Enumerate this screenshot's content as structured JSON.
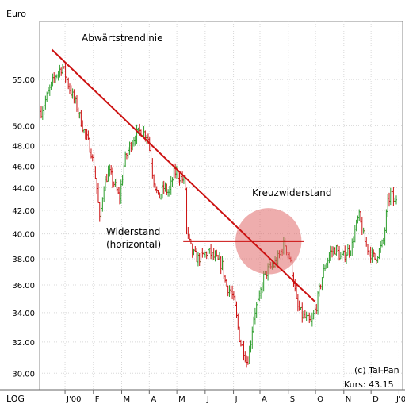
{
  "chart_data": {
    "type": "candlestick",
    "ylabel": "Euro",
    "scale": "log",
    "scale_label": "LOG",
    "ylim": [
      29,
      62
    ],
    "y_ticks": [
      "55.00",
      "50.00",
      "48.00",
      "46.00",
      "44.00",
      "42.00",
      "40.00",
      "38.00",
      "36.00",
      "34.00",
      "32.00",
      "30.00"
    ],
    "y_tick_values": [
      55,
      50,
      48,
      46,
      44,
      42,
      40,
      38,
      36,
      34,
      32,
      30
    ],
    "x_labels": [
      "J'00",
      "F",
      "M",
      "A",
      "M",
      "J",
      "J",
      "A",
      "S",
      "O",
      "N",
      "D",
      "J'01"
    ],
    "x_label_positions": [
      0.07,
      0.148,
      0.226,
      0.302,
      0.378,
      0.456,
      0.534,
      0.607,
      0.685,
      0.76,
      0.838,
      0.913,
      0.99
    ],
    "grid": true,
    "bull_color": "#2e9e2e",
    "bear_color": "#cc1111",
    "line_color": "#cc1111",
    "highlight_color": "#e06a6a",
    "path_points": [
      [
        0.0,
        51.5
      ],
      [
        0.02,
        53.5
      ],
      [
        0.04,
        55.5
      ],
      [
        0.06,
        56.5
      ],
      [
        0.08,
        54.0
      ],
      [
        0.1,
        52.0
      ],
      [
        0.12,
        49.5
      ],
      [
        0.14,
        47.5
      ],
      [
        0.155,
        44.5
      ],
      [
        0.165,
        41.0
      ],
      [
        0.175,
        44.0
      ],
      [
        0.19,
        45.5
      ],
      [
        0.21,
        44.0
      ],
      [
        0.22,
        43.0
      ],
      [
        0.235,
        46.5
      ],
      [
        0.25,
        48.0
      ],
      [
        0.265,
        49.0
      ],
      [
        0.28,
        49.5
      ],
      [
        0.3,
        49.0
      ],
      [
        0.315,
        45.0
      ],
      [
        0.33,
        43.0
      ],
      [
        0.345,
        44.0
      ],
      [
        0.36,
        43.5
      ],
      [
        0.375,
        45.5
      ],
      [
        0.39,
        45.0
      ],
      [
        0.405,
        44.5
      ],
      [
        0.41,
        40.0
      ],
      [
        0.425,
        38.5
      ],
      [
        0.44,
        38.0
      ],
      [
        0.455,
        38.2
      ],
      [
        0.47,
        38.6
      ],
      [
        0.49,
        38.0
      ],
      [
        0.51,
        37.5
      ],
      [
        0.52,
        36.0
      ],
      [
        0.535,
        35.5
      ],
      [
        0.545,
        34.5
      ],
      [
        0.56,
        32.0
      ],
      [
        0.57,
        31.5
      ],
      [
        0.58,
        30.6
      ],
      [
        0.59,
        32.0
      ],
      [
        0.6,
        34.0
      ],
      [
        0.615,
        35.0
      ],
      [
        0.625,
        36.5
      ],
      [
        0.64,
        37.2
      ],
      [
        0.655,
        37.5
      ],
      [
        0.67,
        38.2
      ],
      [
        0.685,
        39.3
      ],
      [
        0.7,
        38.0
      ],
      [
        0.71,
        36.5
      ],
      [
        0.72,
        34.5
      ],
      [
        0.735,
        33.8
      ],
      [
        0.75,
        33.5
      ],
      [
        0.76,
        33.2
      ],
      [
        0.775,
        34.5
      ],
      [
        0.79,
        36.5
      ],
      [
        0.8,
        37.5
      ],
      [
        0.815,
        38.5
      ],
      [
        0.83,
        38.8
      ],
      [
        0.845,
        38.0
      ],
      [
        0.86,
        38.5
      ],
      [
        0.875,
        39.0
      ],
      [
        0.885,
        40.5
      ],
      [
        0.895,
        41.5
      ],
      [
        0.91,
        39.5
      ],
      [
        0.925,
        38.5
      ],
      [
        0.94,
        38.0
      ],
      [
        0.955,
        38.8
      ],
      [
        0.965,
        39.5
      ],
      [
        0.975,
        42.5
      ],
      [
        0.985,
        43.6
      ],
      [
        0.995,
        42.5
      ],
      [
        1.0,
        43.1
      ]
    ],
    "trend_line": {
      "from": [
        0.03,
        58.5
      ],
      "to": [
        0.77,
        34.8
      ]
    },
    "resistance_line": {
      "from": [
        0.4,
        39.4
      ],
      "to": [
        0.74,
        39.4
      ]
    },
    "highlight_circle": {
      "center": [
        0.64,
        39.4
      ],
      "radius_value": 2.6
    },
    "annotations": {
      "downtrend": "Abwärtstrendlnie",
      "cross_resistance": "Kreuzwiderstand",
      "resistance_line1": "Widerstand",
      "resistance_line2": "(horizontal)"
    },
    "copyright": "(c) Tai-Pan",
    "price_label": "Kurs:  43.15"
  }
}
